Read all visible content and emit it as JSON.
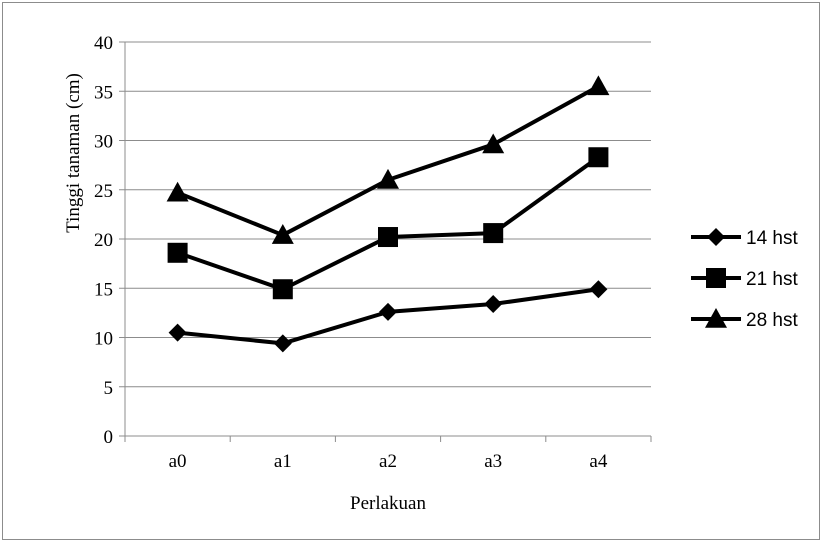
{
  "chart_data": {
    "type": "line",
    "categories": [
      "a0",
      "a1",
      "a2",
      "a3",
      "a4"
    ],
    "series": [
      {
        "name": "14 hst",
        "marker": "diamond",
        "values": [
          10.5,
          9.4,
          12.6,
          13.4,
          14.9
        ]
      },
      {
        "name": "21 hst",
        "marker": "square",
        "values": [
          18.6,
          14.9,
          20.2,
          20.6,
          28.3
        ]
      },
      {
        "name": "28 hst",
        "marker": "triangle",
        "values": [
          24.7,
          20.4,
          26.0,
          29.6,
          35.5
        ]
      }
    ],
    "xlabel": "Perlakuan",
    "ylabel": "Tinggi tanaman (cm)",
    "ylim": [
      0,
      40
    ],
    "yticks": [
      "0",
      "5",
      "10",
      "15",
      "20",
      "25",
      "30",
      "35",
      "40"
    ],
    "grid": true,
    "legend": "right",
    "colors": {
      "series": "#000000",
      "grid": "#8c8c8c",
      "axis": "#8c8c8c"
    }
  }
}
